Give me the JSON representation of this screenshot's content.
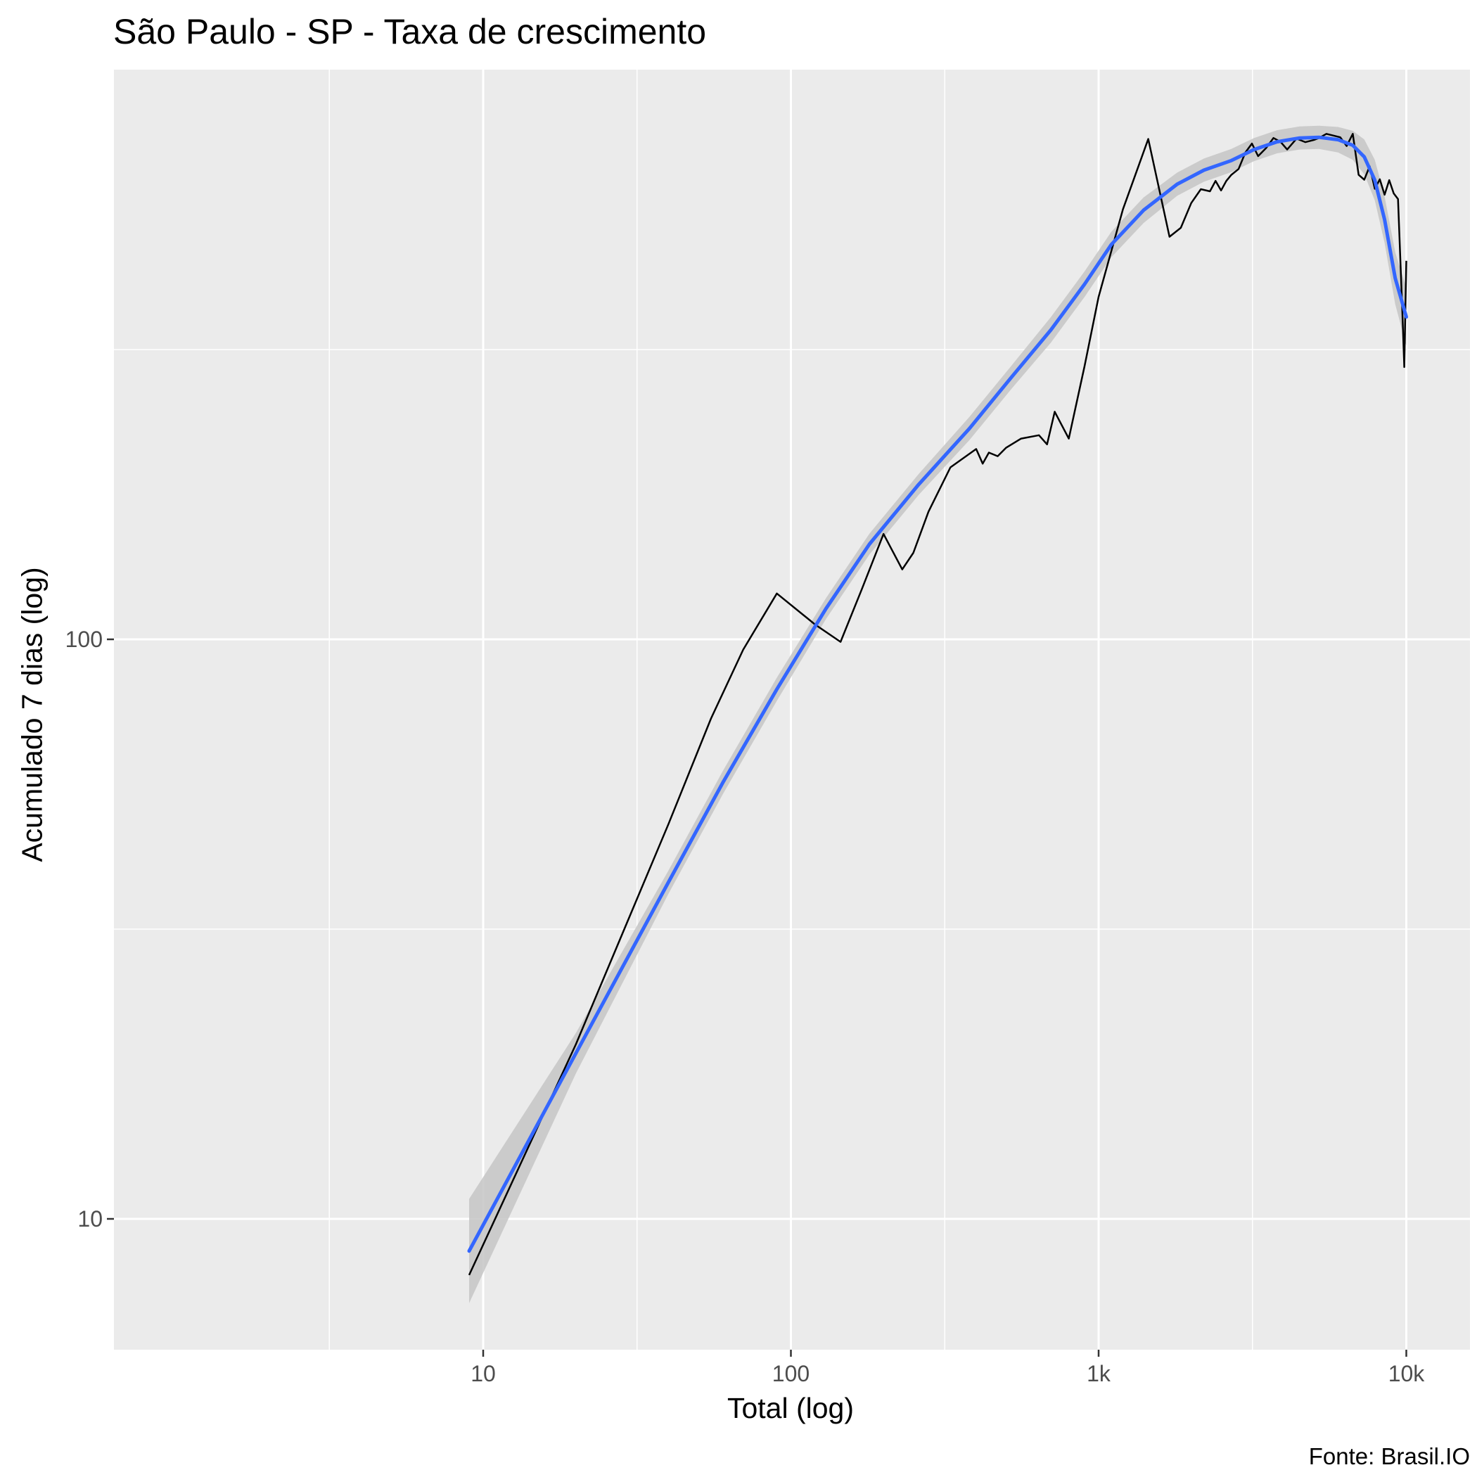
{
  "chart_data": {
    "type": "line",
    "title": "São Paulo - SP - Taxa de crescimento",
    "xlabel": "Total (log)",
    "ylabel": "Acumulado 7 dias (log)",
    "caption": "Fonte: Brasil.IO",
    "x_scale": "log10",
    "y_scale": "log10",
    "xlim": [
      1.3,
      13000
    ],
    "ylim": [
      5.4,
      1300
    ],
    "x_ticks": [
      {
        "value": 10,
        "label": "10"
      },
      {
        "value": 100,
        "label": "100"
      },
      {
        "value": 1000,
        "label": "1k"
      },
      {
        "value": 10000,
        "label": "10k"
      }
    ],
    "y_ticks": [
      {
        "value": 10,
        "label": "10"
      },
      {
        "value": 100,
        "label": "100"
      }
    ],
    "grid": true,
    "legend": "none",
    "colors": {
      "panel": "#ebebeb",
      "grid": "#ffffff",
      "line": "#000000",
      "smooth": "#3366ff",
      "band": "#c6c6c6"
    },
    "series": [
      {
        "type": "line",
        "x": [
          9,
          20,
          40,
          55,
          70,
          90,
          120,
          145,
          170,
          200,
          230,
          250,
          280,
          330,
          400,
          420,
          440,
          470,
          500,
          560,
          640,
          680,
          720,
          800,
          900,
          1000,
          1200,
          1450,
          1700,
          1850,
          2000,
          2150,
          2300,
          2400,
          2500,
          2600,
          2700,
          2850,
          3000,
          3150,
          3300,
          3500,
          3700,
          3900,
          4100,
          4400,
          4700,
          5000,
          5200,
          5500,
          5800,
          6100,
          6400,
          6700,
          7000,
          7300,
          7600,
          7900,
          8200,
          8500,
          8800,
          9100,
          9400,
          9700,
          9850,
          10000
        ],
        "y": [
          8,
          20,
          48,
          73,
          96,
          120,
          106,
          99,
          122,
          152,
          132,
          141,
          166,
          198,
          213,
          201,
          210,
          207,
          214,
          222,
          225,
          217,
          247,
          222,
          296,
          390,
          552,
          730,
          495,
          513,
          566,
          598,
          593,
          618,
          595,
          618,
          633,
          648,
          692,
          717,
          682,
          704,
          733,
          722,
          700,
          731,
          721,
          727,
          733,
          745,
          740,
          735,
          710,
          745,
          633,
          621,
          655,
          599,
          622,
          585,
          620,
          588,
          575,
          372,
          295,
          450
        ]
      },
      {
        "type": "smooth",
        "x": [
          9,
          20,
          40,
          60,
          90,
          130,
          180,
          260,
          380,
          520,
          700,
          900,
          1100,
          1400,
          1800,
          2200,
          2700,
          3200,
          3800,
          4500,
          5200,
          6000,
          6700,
          7300,
          7900,
          8500,
          9200,
          10000
        ],
        "y": [
          8.8,
          19.3,
          38.1,
          56.5,
          82,
          113,
          146,
          185,
          231,
          283,
          342,
          410,
          480,
          550,
          610,
          645,
          670,
          700,
          722,
          733,
          735,
          728,
          712,
          680,
          620,
          530,
          420,
          360
        ],
        "band": [
          0.09,
          0.035,
          0.02,
          0.02,
          0.02,
          0.018,
          0.018,
          0.018,
          0.02,
          0.02,
          0.022,
          0.022,
          0.022,
          0.022,
          0.02,
          0.02,
          0.02,
          0.02,
          0.02,
          0.02,
          0.02,
          0.022,
          0.025,
          0.03,
          0.035,
          0.04,
          0.045,
          0.05
        ]
      }
    ]
  }
}
